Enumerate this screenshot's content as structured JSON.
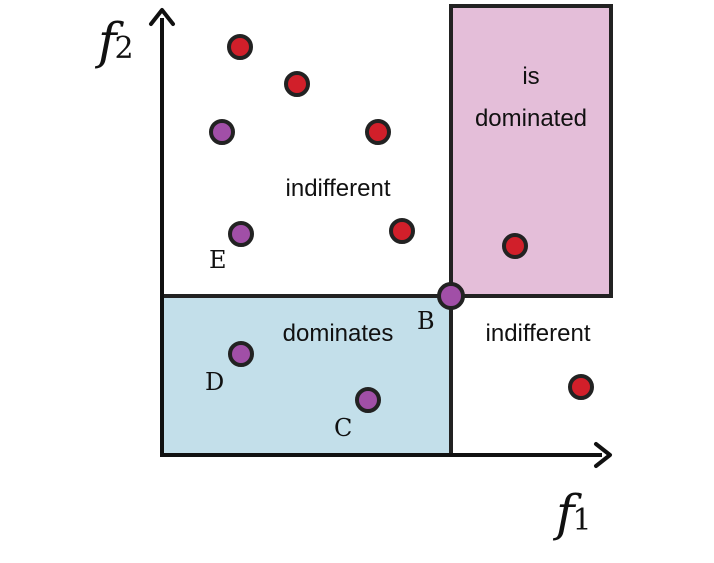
{
  "axes": {
    "x_label": "f",
    "x_subscript": "1",
    "y_label": "f",
    "y_subscript": "2"
  },
  "regions": {
    "dominated_line1": "is",
    "dominated_line2": "dominated",
    "dominates": "dominates",
    "indifferent_upper_left": "indifferent",
    "indifferent_lower_right": "indifferent"
  },
  "point_labels": {
    "b": "B",
    "c": "C",
    "d": "D",
    "e": "E"
  },
  "colors": {
    "dominated_fill": "#e4bed9",
    "dominates_fill": "#c3dfea",
    "red_point": "#d11f2a",
    "purple_point": "#a14fa7",
    "stroke": "#222222"
  }
}
